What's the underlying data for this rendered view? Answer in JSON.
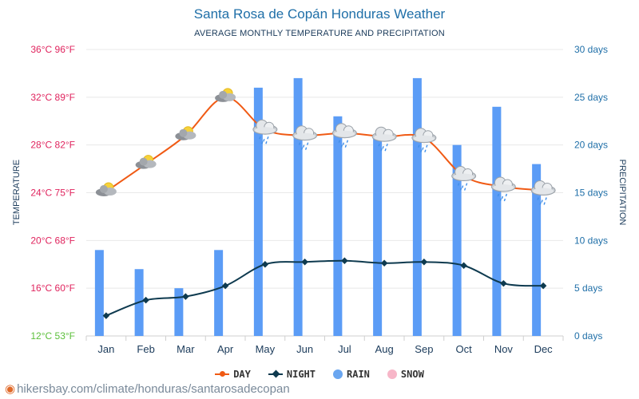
{
  "title": "Santa Rosa de Copán Honduras Weather",
  "subtitle": "AVERAGE MONTHLY TEMPERATURE AND PRECIPITATION",
  "credit": "hikersbay.com/climate/honduras/santarosadecopan",
  "left_axis_title": "TEMPERATURE",
  "right_axis_title": "PRECIPITATION",
  "legend": {
    "day": "DAY",
    "night": "NIGHT",
    "rain": "RAIN",
    "snow": "SNOW"
  },
  "colors": {
    "title": "#1f6fa8",
    "day": "#f05a14",
    "night": "#0e3a4f",
    "rain": "#5b9cf6",
    "snow": "#f7b6c8",
    "temp_tick": "#e0245e",
    "temp_tick_bottom": "#5bbf3a",
    "rain_tick": "#1f6fa8"
  },
  "chart_data": {
    "type": "bar+line",
    "categories": [
      "Jan",
      "Feb",
      "Mar",
      "Apr",
      "May",
      "Jun",
      "Jul",
      "Aug",
      "Sep",
      "Oct",
      "Nov",
      "Dec"
    ],
    "temp_ticks": [
      "12°C 53°F",
      "16°C 60°F",
      "20°C 68°F",
      "24°C 75°F",
      "28°C 82°F",
      "32°C 89°F",
      "36°C 96°F"
    ],
    "rain_ticks": [
      "0 days",
      "5 days",
      "10 days",
      "15 days",
      "20 days",
      "25 days",
      "30 days"
    ],
    "temp_range": [
      12,
      36
    ],
    "rain_range": [
      0,
      30
    ],
    "series": [
      {
        "name": "DAY",
        "axis": "temperature",
        "values": [
          24.1,
          26.4,
          28.8,
          32.0,
          29.3,
          28.8,
          29.0,
          28.7,
          28.6,
          25.4,
          24.5,
          24.2
        ]
      },
      {
        "name": "NIGHT",
        "axis": "temperature",
        "values": [
          13.7,
          15.0,
          15.3,
          16.2,
          18.0,
          18.2,
          18.3,
          18.1,
          18.2,
          17.9,
          16.4,
          16.2
        ]
      },
      {
        "name": "RAIN",
        "axis": "precipitation",
        "type": "bar",
        "values": [
          9,
          7,
          5,
          9,
          26,
          27,
          23,
          21,
          27,
          20,
          24,
          18
        ]
      }
    ],
    "weather_icons": [
      "partly-cloudy-icon",
      "partly-cloudy-icon",
      "partly-cloudy-icon",
      "partly-cloudy-icon",
      "rain-cloud-icon",
      "rain-cloud-icon",
      "rain-cloud-icon",
      "rain-cloud-icon",
      "rain-cloud-icon",
      "rain-cloud-icon",
      "rain-cloud-icon",
      "rain-cloud-icon"
    ],
    "grid": true,
    "legend_position": "bottom"
  }
}
